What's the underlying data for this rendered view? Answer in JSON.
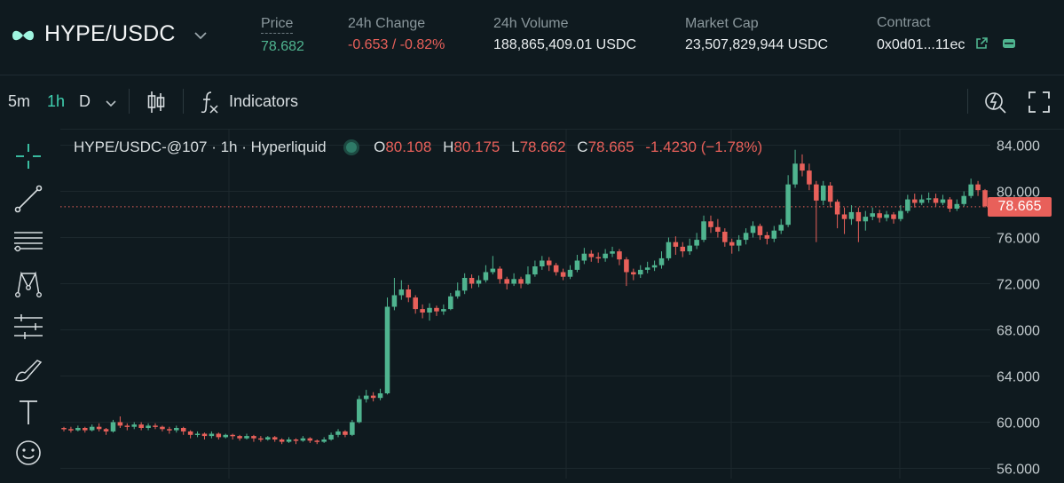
{
  "header": {
    "pair": "HYPE/USDC",
    "stats": [
      {
        "label": "Price",
        "value": "78.682"
      },
      {
        "label": "24h Change",
        "value": "-0.653 / -0.82%"
      },
      {
        "label": "24h Volume",
        "value": "188,865,409.01 USDC"
      },
      {
        "label": "Market Cap",
        "value": "23,507,829,944 USDC"
      },
      {
        "label": "Contract",
        "value": "0x0d01...11ec"
      }
    ]
  },
  "toolbar": {
    "intervals": [
      "5m",
      "1h",
      "D"
    ],
    "active_interval": "1h",
    "indicators_label": "Indicators"
  },
  "legend": {
    "symbol": "HYPE/USDC-@107 · 1h · Hyperliquid",
    "o_label": "O",
    "o_value": "80.108",
    "h_label": "H",
    "h_value": "80.175",
    "l_label": "L",
    "l_value": "78.662",
    "c_label": "C",
    "c_value": "78.665",
    "change": "-1.4230 (−1.78%)"
  },
  "colors": {
    "up": "#4fb48f",
    "down": "#e8605a",
    "background": "#0f1a1f",
    "accent": "#3fd0b0"
  },
  "icons": [
    "chevron-down-icon",
    "candle-type-icon",
    "fx-icon",
    "lightning-settings-icon",
    "fullscreen-icon",
    "crosshair-icon",
    "trendline-icon",
    "horizontal-lines-icon",
    "pattern-icon",
    "measure-icon",
    "brush-icon",
    "text-icon",
    "emoji-icon",
    "external-link-icon",
    "wallet-icon"
  ],
  "chart_data": {
    "type": "candlestick",
    "y_ticks": [
      "84.000",
      "80.000",
      "76.000",
      "72.000",
      "68.000",
      "64.000",
      "60.000",
      "56.000"
    ],
    "ylim": [
      56,
      85
    ],
    "last_price": "78.665",
    "candles": [
      [
        59.5,
        59.4,
        59.6,
        59.2
      ],
      [
        59.4,
        59.3,
        59.6,
        59.1
      ],
      [
        59.3,
        59.5,
        59.7,
        59.2
      ],
      [
        59.5,
        59.3,
        59.6,
        59.1
      ],
      [
        59.3,
        59.6,
        59.8,
        59.2
      ],
      [
        59.6,
        59.4,
        59.9,
        59.2
      ],
      [
        59.4,
        59.2,
        59.5,
        58.9
      ],
      [
        59.2,
        60.0,
        60.2,
        59.1
      ],
      [
        60.0,
        59.7,
        60.5,
        59.5
      ],
      [
        59.7,
        59.6,
        59.9,
        59.3
      ],
      [
        59.6,
        59.8,
        60.0,
        59.4
      ],
      [
        59.8,
        59.5,
        60.0,
        59.3
      ],
      [
        59.5,
        59.7,
        59.9,
        59.3
      ],
      [
        59.7,
        59.6,
        59.9,
        59.4
      ],
      [
        59.6,
        59.4,
        59.7,
        59.2
      ],
      [
        59.4,
        59.3,
        59.6,
        59.0
      ],
      [
        59.3,
        59.5,
        59.7,
        59.1
      ],
      [
        59.5,
        59.2,
        59.6,
        58.9
      ],
      [
        59.2,
        58.9,
        59.3,
        58.6
      ],
      [
        58.9,
        59.0,
        59.2,
        58.7
      ],
      [
        59.0,
        58.8,
        59.1,
        58.5
      ],
      [
        58.8,
        59.0,
        59.2,
        58.6
      ],
      [
        59.0,
        58.7,
        59.1,
        58.5
      ],
      [
        58.7,
        58.9,
        59.0,
        58.6
      ],
      [
        58.9,
        58.8,
        59.0,
        58.5
      ],
      [
        58.8,
        58.6,
        58.9,
        58.4
      ],
      [
        58.6,
        58.8,
        59.0,
        58.5
      ],
      [
        58.8,
        58.6,
        58.9,
        58.3
      ],
      [
        58.6,
        58.5,
        58.8,
        58.3
      ],
      [
        58.5,
        58.7,
        58.8,
        58.4
      ],
      [
        58.7,
        58.5,
        58.8,
        58.3
      ],
      [
        58.5,
        58.3,
        58.6,
        58.1
      ],
      [
        58.3,
        58.5,
        58.7,
        58.2
      ],
      [
        58.5,
        58.4,
        58.6,
        58.1
      ],
      [
        58.4,
        58.6,
        58.8,
        58.3
      ],
      [
        58.6,
        58.4,
        58.7,
        58.2
      ],
      [
        58.4,
        58.3,
        58.5,
        58.1
      ],
      [
        58.3,
        58.5,
        58.7,
        58.2
      ],
      [
        58.5,
        58.9,
        59.1,
        58.4
      ],
      [
        58.9,
        59.2,
        59.4,
        58.7
      ],
      [
        59.2,
        58.9,
        59.3,
        58.7
      ],
      [
        58.9,
        60.0,
        60.2,
        58.8
      ],
      [
        60.0,
        62.0,
        62.3,
        59.9
      ],
      [
        62.0,
        62.3,
        62.8,
        61.7
      ],
      [
        62.3,
        62.1,
        62.6,
        61.8
      ],
      [
        62.1,
        62.5,
        62.9,
        61.9
      ],
      [
        62.5,
        70.0,
        70.8,
        62.4
      ],
      [
        70.0,
        71.0,
        72.5,
        69.7
      ],
      [
        71.0,
        71.5,
        72.3,
        70.6
      ],
      [
        71.5,
        70.8,
        71.9,
        70.4
      ],
      [
        70.8,
        69.8,
        71.0,
        69.4
      ],
      [
        69.8,
        69.5,
        70.2,
        69.0
      ],
      [
        69.5,
        69.9,
        70.3,
        68.8
      ],
      [
        69.9,
        69.6,
        70.1,
        69.2
      ],
      [
        69.6,
        69.8,
        70.2,
        69.3
      ],
      [
        69.8,
        70.9,
        71.2,
        69.7
      ],
      [
        70.9,
        71.4,
        72.1,
        70.7
      ],
      [
        71.4,
        72.5,
        72.9,
        71.1
      ],
      [
        72.5,
        72.0,
        72.8,
        71.6
      ],
      [
        72.0,
        72.3,
        72.7,
        71.7
      ],
      [
        72.3,
        73.0,
        73.6,
        72.1
      ],
      [
        73.0,
        73.3,
        74.4,
        72.8
      ],
      [
        73.3,
        72.4,
        73.5,
        72.0
      ],
      [
        72.4,
        72.0,
        72.6,
        71.5
      ],
      [
        72.0,
        72.4,
        72.9,
        71.8
      ],
      [
        72.4,
        72.0,
        72.6,
        71.6
      ],
      [
        72.0,
        72.8,
        73.5,
        71.9
      ],
      [
        72.8,
        73.5,
        74.0,
        72.6
      ],
      [
        73.5,
        74.0,
        74.4,
        73.2
      ],
      [
        74.0,
        73.6,
        74.3,
        73.1
      ],
      [
        73.6,
        73.0,
        73.8,
        72.7
      ],
      [
        73.0,
        72.6,
        73.3,
        72.3
      ],
      [
        72.6,
        73.2,
        73.6,
        72.4
      ],
      [
        73.2,
        74.0,
        74.5,
        73.0
      ],
      [
        74.0,
        74.6,
        75.1,
        73.7
      ],
      [
        74.6,
        74.3,
        74.9,
        73.9
      ],
      [
        74.3,
        74.2,
        74.7,
        73.8
      ],
      [
        74.2,
        74.6,
        75.0,
        73.9
      ],
      [
        74.6,
        74.8,
        75.2,
        74.3
      ],
      [
        74.8,
        74.1,
        75.0,
        73.6
      ],
      [
        74.1,
        73.0,
        74.3,
        71.8
      ],
      [
        73.0,
        72.8,
        73.3,
        72.3
      ],
      [
        72.8,
        73.2,
        73.6,
        72.5
      ],
      [
        73.2,
        73.4,
        73.9,
        72.9
      ],
      [
        73.4,
        73.6,
        74.0,
        73.1
      ],
      [
        73.6,
        74.2,
        74.8,
        73.3
      ],
      [
        74.2,
        75.6,
        76.0,
        74.0
      ],
      [
        75.6,
        75.2,
        76.1,
        74.5
      ],
      [
        75.2,
        74.8,
        75.6,
        74.3
      ],
      [
        74.8,
        75.3,
        75.9,
        74.5
      ],
      [
        75.3,
        75.8,
        76.4,
        75.0
      ],
      [
        75.8,
        77.4,
        77.9,
        75.6
      ],
      [
        77.4,
        76.9,
        77.9,
        76.4
      ],
      [
        76.9,
        76.5,
        77.6,
        76.0
      ],
      [
        76.5,
        75.6,
        76.8,
        75.2
      ],
      [
        75.6,
        75.3,
        75.9,
        74.6
      ],
      [
        75.3,
        75.8,
        76.2,
        74.8
      ],
      [
        75.8,
        76.4,
        76.8,
        75.4
      ],
      [
        76.4,
        77.0,
        77.4,
        76.0
      ],
      [
        77.0,
        76.2,
        77.2,
        75.8
      ],
      [
        76.2,
        75.9,
        76.5,
        75.4
      ],
      [
        75.9,
        76.6,
        77.0,
        75.6
      ],
      [
        76.6,
        77.1,
        77.6,
        76.3
      ],
      [
        77.1,
        80.6,
        81.4,
        76.9
      ],
      [
        80.6,
        82.4,
        83.6,
        80.3
      ],
      [
        82.4,
        81.8,
        83.2,
        81.3
      ],
      [
        81.8,
        80.6,
        82.4,
        80.1
      ],
      [
        80.6,
        79.2,
        80.9,
        75.6
      ],
      [
        79.2,
        80.5,
        80.9,
        78.8
      ],
      [
        80.5,
        79.1,
        80.8,
        78.6
      ],
      [
        79.1,
        78.0,
        79.3,
        76.8
      ],
      [
        78.0,
        77.6,
        78.6,
        76.3
      ],
      [
        77.6,
        78.2,
        78.8,
        77.1
      ],
      [
        78.2,
        77.4,
        78.6,
        75.6
      ],
      [
        77.4,
        77.8,
        78.3,
        76.6
      ],
      [
        77.8,
        78.1,
        78.6,
        77.5
      ],
      [
        78.1,
        77.7,
        78.4,
        77.3
      ],
      [
        77.7,
        78.0,
        78.3,
        77.4
      ],
      [
        78.0,
        77.6,
        78.2,
        77.2
      ],
      [
        77.6,
        78.3,
        78.8,
        77.4
      ],
      [
        78.3,
        79.3,
        79.7,
        78.1
      ],
      [
        79.3,
        79.0,
        79.8,
        78.6
      ],
      [
        79.0,
        79.3,
        79.7,
        78.8
      ],
      [
        79.3,
        79.4,
        79.9,
        79.0
      ],
      [
        79.4,
        79.0,
        79.8,
        78.7
      ],
      [
        79.0,
        79.3,
        79.7,
        78.8
      ],
      [
        79.3,
        78.5,
        79.5,
        78.2
      ],
      [
        78.5,
        78.9,
        79.3,
        78.3
      ],
      [
        78.9,
        79.6,
        80.0,
        78.7
      ],
      [
        79.6,
        80.6,
        81.1,
        79.4
      ],
      [
        80.6,
        80.1,
        80.9,
        79.6
      ],
      [
        80.1,
        78.7,
        80.2,
        78.6
      ]
    ]
  }
}
